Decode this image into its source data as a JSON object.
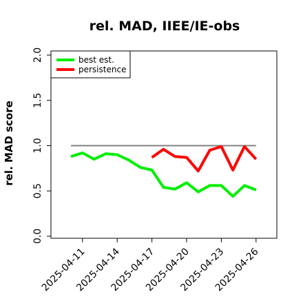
{
  "chart_data": {
    "type": "line",
    "title": "rel. MAD, IIEE/IE-obs",
    "xlabel": "",
    "ylabel": "rel. MAD score",
    "ylim": [
      0,
      2
    ],
    "y_ticks": [
      "0.0",
      "0.5",
      "1.0",
      "1.5",
      "2.0"
    ],
    "x_tick_labels": [
      "2025-04-11",
      "2025-04-14",
      "2025-04-17",
      "2025-04-20",
      "2025-04-23",
      "2025-04-26"
    ],
    "x_dates": [
      "2025-04-10",
      "2025-04-11",
      "2025-04-12",
      "2025-04-13",
      "2025-04-14",
      "2025-04-15",
      "2025-04-16",
      "2025-04-17",
      "2025-04-18",
      "2025-04-19",
      "2025-04-20",
      "2025-04-21",
      "2025-04-22",
      "2025-04-23",
      "2025-04-24",
      "2025-04-25",
      "2025-04-26"
    ],
    "reference_line": 1.0,
    "legend_position": "top-left",
    "grid": false,
    "series": [
      {
        "name": "best est.",
        "color": "#00ee00",
        "values": [
          0.88,
          0.92,
          0.85,
          0.91,
          0.9,
          0.84,
          0.76,
          0.73,
          0.54,
          0.52,
          0.59,
          0.49,
          0.56,
          0.56,
          0.44,
          0.56,
          0.51
        ]
      },
      {
        "name": "persistence",
        "color": "#ff0000",
        "values": [
          null,
          null,
          null,
          null,
          null,
          null,
          null,
          0.87,
          0.96,
          0.88,
          0.87,
          0.72,
          0.95,
          0.99,
          0.73,
          0.99,
          0.85
        ]
      }
    ]
  }
}
